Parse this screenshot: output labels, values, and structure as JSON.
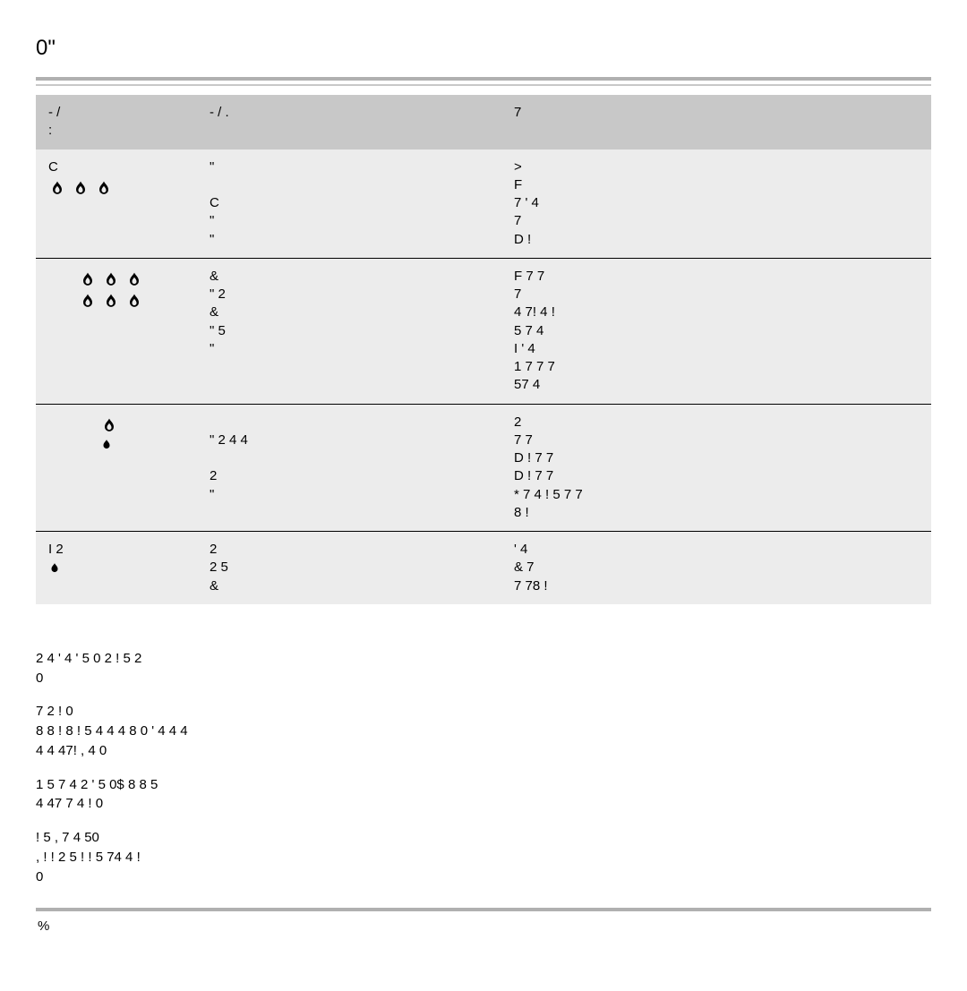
{
  "colors": {
    "bg": "#ffffff",
    "table_bg": "#ececec",
    "header_bg": "#c8c8c8",
    "rule": "#b0b0b0",
    "rule_light": "#c8c8c8",
    "row_border": "#000000",
    "text": "#000000",
    "icon": "#000000"
  },
  "typography": {
    "title_size_pt": 18,
    "body_size_pt": 11,
    "font_family": "Arial"
  },
  "title": "0\"",
  "table": {
    "columns": [
      "-   /\n  :",
      "-   /     .",
      "7"
    ],
    "rows": [
      {
        "col1_text": "C",
        "col1_icons": [
          {
            "count": 3,
            "indent": 0,
            "size": "large"
          }
        ],
        "col2_lines": [
          "\"",
          "",
          "C",
          "\"",
          "\""
        ],
        "col3_lines": [
          ">",
          "F",
          "   7 '   4",
          "     7",
          "D      !"
        ]
      },
      {
        "col1_text": "",
        "col1_icons": [
          {
            "count": 3,
            "indent": 1,
            "size": "large"
          },
          {
            "count": 3,
            "indent": 1,
            "size": "large"
          }
        ],
        "col2_lines": [
          "&",
          "\"   2",
          "&",
          "\"  5",
          "\""
        ],
        "col3_lines": [
          "F    7    7",
          "  7",
          "   4  7!    4     !",
          "    5   7     4",
          "I '   4",
          "1        7       7           7",
          "         57       4"
        ]
      },
      {
        "col1_text": "",
        "col1_icons": [
          {
            "count": 1,
            "indent": 2,
            "size": "large"
          },
          {
            "count": 1,
            "indent": 2,
            "size": "small"
          }
        ],
        "col2_lines": [
          "",
          "\"       2        4  4",
          "",
          "   2",
          "\""
        ],
        "col3_lines": [
          " 2",
          "     7     7",
          "D      !    7        7",
          "D      !   7    7",
          "*      7    4 !       5 7      7",
          "8      !"
        ]
      },
      {
        "col1_text": "I  2",
        "col1_icons": [
          {
            "count": 1,
            "indent": 0,
            "size": "small"
          }
        ],
        "col2_lines": [
          "  2",
          "  2     5",
          "&"
        ],
        "col3_lines": [
          "    '       4",
          "&   7",
          "    7        78      !"
        ]
      }
    ]
  },
  "body_paragraphs": [
    "2                             4                '    4            '   5 0     2   !  5      2\n     0",
    "                                                          7   2            !      0\n   8       8    ! 8     !     5 4                    4 4 8    0         '    4 4      4\n                   4    4          47!           ,    4              0",
    "1                                    5   7     4   2         '   5 0$  8     8         5\n      4  47         7   4    !    0",
    "     !              5   ,                     7      4            50\n     , !           !          2  5 !       !       5   74             4 !\n            0"
  ],
  "page_number": "%"
}
